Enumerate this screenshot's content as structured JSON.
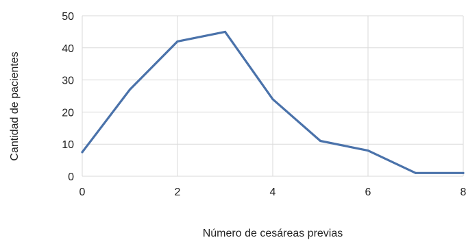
{
  "chart_data": {
    "type": "line",
    "title": "",
    "xlabel": "Número de cesáreas previas",
    "ylabel": "Cantidad de pacientes",
    "xlim": [
      0,
      8
    ],
    "ylim": [
      0,
      50
    ],
    "x_ticks": [
      0,
      2,
      4,
      6,
      8
    ],
    "y_ticks": [
      0,
      10,
      20,
      30,
      40,
      50
    ],
    "grid": true,
    "legend": "none",
    "series": [
      {
        "color": "#4a72aa",
        "x": [
          0,
          1,
          2,
          3,
          4,
          5,
          6,
          7,
          8
        ],
        "y": [
          7.5,
          27,
          42,
          45,
          24,
          11,
          8,
          1,
          1
        ]
      }
    ]
  }
}
